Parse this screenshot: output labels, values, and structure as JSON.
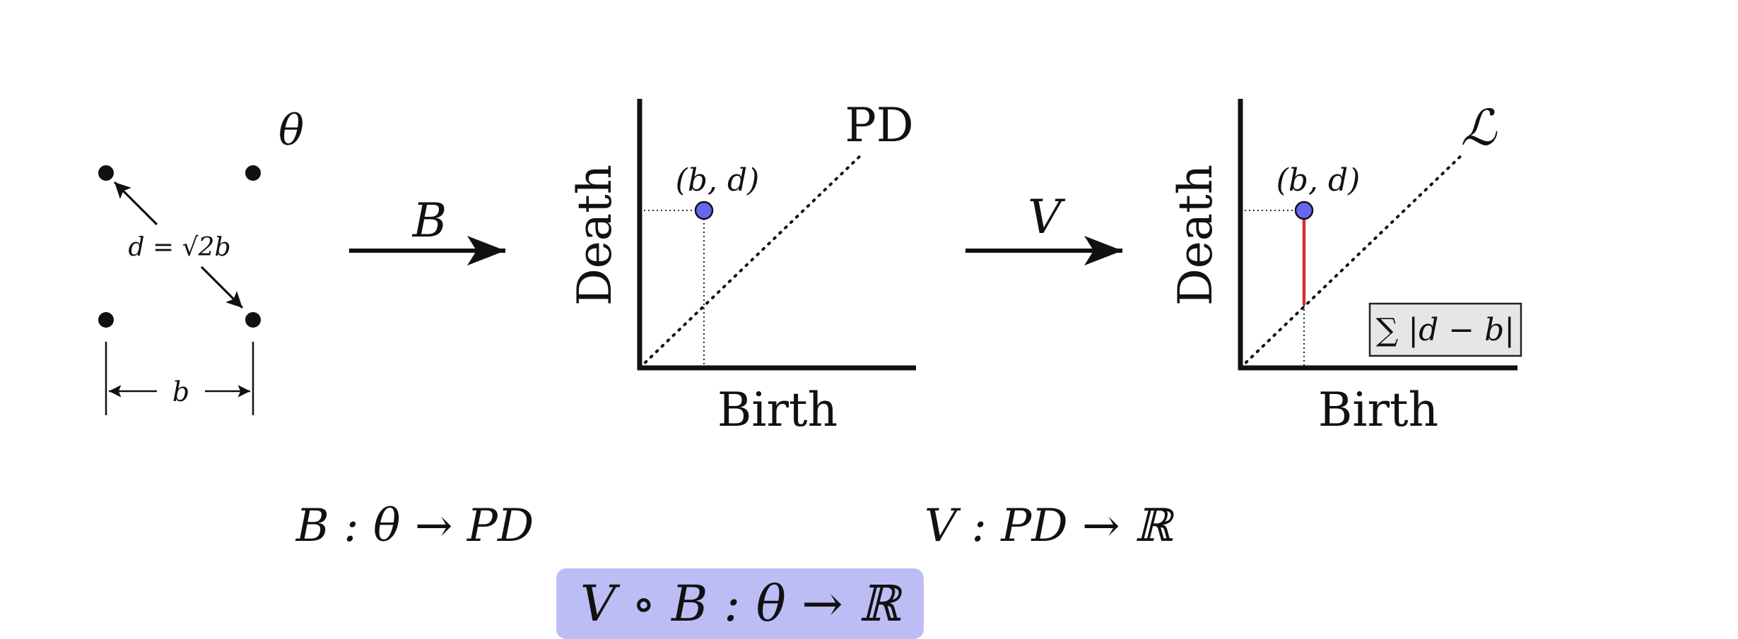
{
  "panel_theta": {
    "label": "θ",
    "distance_label": "d = √2b",
    "width_label": "b"
  },
  "arrow_b": {
    "label": "B"
  },
  "pd_plot": {
    "title": "PD",
    "xlabel": "Birth",
    "ylabel": "Death",
    "point_label": "(b, d)"
  },
  "arrow_v": {
    "label": "V"
  },
  "loss_plot": {
    "title": "ℒ",
    "xlabel": "Birth",
    "ylabel": "Death",
    "point_label": "(b, d)",
    "sum_label": "∑ |d − b|",
    "distance_color": "#d0303a"
  },
  "maps": {
    "b_map": "B : θ → PD",
    "v_map": "V : PD → ℝ",
    "composite": "V ∘ B : θ → ℝ"
  },
  "colors": {
    "point_fill": "#6666ee",
    "composite_bg": "#bdbdf6",
    "sum_bg": "#e6e6e6"
  }
}
